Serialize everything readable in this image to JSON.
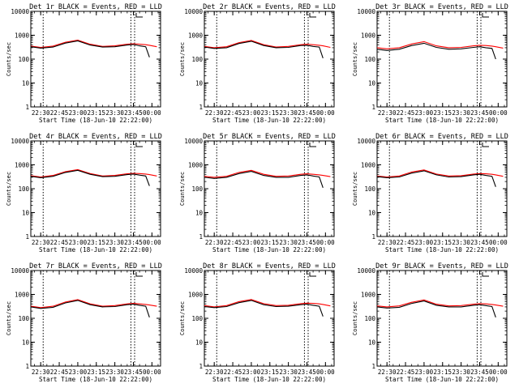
{
  "chart_data": [
    {
      "type": "line",
      "title": "Det 1r BLACK = Events, RED = LLD",
      "xlabel": "Start Time (18-Jun-10 22:22:00)",
      "ylabel": "Counts/sec",
      "yscale": "log",
      "ylim": [
        1,
        10000
      ],
      "xlim": [
        "22:22",
        "00:07"
      ],
      "x_ticks": [
        "22:30",
        "22:45",
        "23:00",
        "23:15",
        "23:30",
        "23:45",
        "00:00"
      ],
      "y_ticks": [
        "1",
        "10",
        "100",
        "1000",
        "10000"
      ],
      "vlines": [
        "22:32",
        "23:43",
        "23:46"
      ],
      "legend_marker": "top-right",
      "grid": false,
      "x": [
        "22:22",
        "22:30",
        "22:40",
        "22:50",
        "23:00",
        "23:10",
        "23:20",
        "23:30",
        "23:40",
        "23:45",
        "23:50",
        "23:55",
        "23:58",
        "00:04"
      ],
      "series": [
        {
          "name": "Events",
          "color": "#000000",
          "values": [
            330,
            290,
            320,
            470,
            580,
            390,
            320,
            330,
            390,
            410,
            360,
            330,
            120,
            null
          ]
        },
        {
          "name": "LLD",
          "color": "#ff0000",
          "values": [
            350,
            310,
            350,
            510,
            620,
            420,
            340,
            360,
            420,
            440,
            420,
            400,
            380,
            330
          ]
        }
      ]
    },
    {
      "type": "line",
      "title": "Det 2r BLACK = Events, RED = LLD",
      "xlabel": "Start Time (18-Jun-10 22:22:00)",
      "ylabel": "Counts/sec",
      "yscale": "log",
      "ylim": [
        1,
        10000
      ],
      "xlim": [
        "22:22",
        "00:07"
      ],
      "x_ticks": [
        "22:30",
        "22:45",
        "23:00",
        "23:15",
        "23:30",
        "23:45",
        "00:00"
      ],
      "y_ticks": [
        "1",
        "10",
        "100",
        "1000",
        "10000"
      ],
      "vlines": [
        "22:32",
        "23:43",
        "23:46"
      ],
      "legend_marker": "top-right",
      "grid": false,
      "x": [
        "22:22",
        "22:30",
        "22:40",
        "22:50",
        "23:00",
        "23:10",
        "23:20",
        "23:30",
        "23:40",
        "23:45",
        "23:50",
        "23:55",
        "23:58",
        "00:04"
      ],
      "series": [
        {
          "name": "Events",
          "color": "#000000",
          "values": [
            320,
            280,
            300,
            450,
            560,
            370,
            300,
            310,
            370,
            380,
            340,
            320,
            110,
            null
          ]
        },
        {
          "name": "LLD",
          "color": "#ff0000",
          "values": [
            340,
            300,
            330,
            490,
            600,
            400,
            320,
            340,
            400,
            420,
            400,
            380,
            360,
            310
          ]
        }
      ]
    },
    {
      "type": "line",
      "title": "Det 3r BLACK = Events, RED = LLD",
      "xlabel": "Start Time (18-Jun-10 22:22:00)",
      "ylabel": "Counts/sec",
      "yscale": "log",
      "ylim": [
        1,
        10000
      ],
      "xlim": [
        "22:22",
        "00:07"
      ],
      "x_ticks": [
        "22:30",
        "22:45",
        "23:00",
        "23:15",
        "23:30",
        "23:45",
        "00:00"
      ],
      "y_ticks": [
        "1",
        "10",
        "100",
        "1000",
        "10000"
      ],
      "vlines": [
        "22:32",
        "23:43",
        "23:46"
      ],
      "legend_marker": "top-right",
      "grid": false,
      "x": [
        "22:22",
        "22:30",
        "22:40",
        "22:50",
        "23:00",
        "23:10",
        "23:20",
        "23:30",
        "23:40",
        "23:45",
        "23:50",
        "23:55",
        "23:58",
        "00:04"
      ],
      "series": [
        {
          "name": "Events",
          "color": "#000000",
          "values": [
            260,
            230,
            260,
            370,
            460,
            310,
            260,
            270,
            310,
            330,
            300,
            280,
            100,
            null
          ]
        },
        {
          "name": "LLD",
          "color": "#ff0000",
          "values": [
            300,
            270,
            300,
            430,
            540,
            360,
            300,
            310,
            360,
            380,
            370,
            350,
            330,
            290
          ]
        }
      ]
    },
    {
      "type": "line",
      "title": "Det 4r BLACK = Events, RED = LLD",
      "xlabel": "Start Time (18-Jun-10 22:22:00)",
      "ylabel": "Counts/sec",
      "yscale": "log",
      "ylim": [
        1,
        10000
      ],
      "xlim": [
        "22:22",
        "00:07"
      ],
      "x_ticks": [
        "22:30",
        "22:45",
        "23:00",
        "23:15",
        "23:30",
        "23:45",
        "00:00"
      ],
      "y_ticks": [
        "1",
        "10",
        "100",
        "1000",
        "10000"
      ],
      "vlines": [
        "22:32",
        "23:43",
        "23:46"
      ],
      "legend_marker": "top-right",
      "grid": false,
      "x": [
        "22:22",
        "22:30",
        "22:40",
        "22:50",
        "23:00",
        "23:10",
        "23:20",
        "23:30",
        "23:40",
        "23:45",
        "23:50",
        "23:55",
        "23:58",
        "00:04"
      ],
      "series": [
        {
          "name": "Events",
          "color": "#000000",
          "values": [
            330,
            290,
            330,
            480,
            590,
            400,
            320,
            330,
            390,
            410,
            370,
            340,
            130,
            null
          ]
        },
        {
          "name": "LLD",
          "color": "#ff0000",
          "values": [
            350,
            310,
            360,
            520,
            630,
            430,
            340,
            360,
            420,
            440,
            430,
            410,
            390,
            340
          ]
        }
      ]
    },
    {
      "type": "line",
      "title": "Det 5r BLACK = Events, RED = LLD",
      "xlabel": "Start Time (18-Jun-10 22:22:00)",
      "ylabel": "Counts/sec",
      "yscale": "log",
      "ylim": [
        1,
        10000
      ],
      "xlim": [
        "22:22",
        "00:07"
      ],
      "x_ticks": [
        "22:30",
        "22:45",
        "23:00",
        "23:15",
        "23:30",
        "23:45",
        "00:00"
      ],
      "y_ticks": [
        "1",
        "10",
        "100",
        "1000",
        "10000"
      ],
      "vlines": [
        "22:32",
        "23:43",
        "23:46"
      ],
      "legend_marker": "top-right",
      "grid": false,
      "x": [
        "22:22",
        "22:30",
        "22:40",
        "22:50",
        "23:00",
        "23:10",
        "23:20",
        "23:30",
        "23:40",
        "23:45",
        "23:50",
        "23:55",
        "23:58",
        "00:04"
      ],
      "series": [
        {
          "name": "Events",
          "color": "#000000",
          "values": [
            300,
            270,
            300,
            430,
            530,
            360,
            300,
            300,
            360,
            380,
            340,
            310,
            110,
            null
          ]
        },
        {
          "name": "LLD",
          "color": "#ff0000",
          "values": [
            330,
            300,
            330,
            480,
            590,
            400,
            330,
            340,
            400,
            420,
            400,
            380,
            360,
            320
          ]
        }
      ]
    },
    {
      "type": "line",
      "title": "Det 6r BLACK = Events, RED = LLD",
      "xlabel": "Start Time (18-Jun-10 22:22:00)",
      "ylabel": "Counts/sec",
      "yscale": "log",
      "ylim": [
        1,
        10000
      ],
      "xlim": [
        "22:22",
        "00:07"
      ],
      "x_ticks": [
        "22:30",
        "22:45",
        "23:00",
        "23:15",
        "23:30",
        "23:45",
        "00:00"
      ],
      "y_ticks": [
        "1",
        "10",
        "100",
        "1000",
        "10000"
      ],
      "vlines": [
        "22:32",
        "23:43",
        "23:46"
      ],
      "legend_marker": "top-right",
      "grid": false,
      "x": [
        "22:22",
        "22:30",
        "22:40",
        "22:50",
        "23:00",
        "23:10",
        "23:20",
        "23:30",
        "23:40",
        "23:45",
        "23:50",
        "23:55",
        "23:58",
        "00:04"
      ],
      "series": [
        {
          "name": "Events",
          "color": "#000000",
          "values": [
            320,
            290,
            310,
            450,
            560,
            380,
            310,
            320,
            380,
            400,
            360,
            330,
            120,
            null
          ]
        },
        {
          "name": "LLD",
          "color": "#ff0000",
          "values": [
            340,
            310,
            340,
            500,
            610,
            410,
            340,
            350,
            410,
            430,
            420,
            400,
            380,
            330
          ]
        }
      ]
    },
    {
      "type": "line",
      "title": "Det 7r BLACK = Events, RED = LLD",
      "xlabel": "Start Time (18-Jun-10 22:22:00)",
      "ylabel": "Counts/sec",
      "yscale": "log",
      "ylim": [
        1,
        10000
      ],
      "xlim": [
        "22:22",
        "00:07"
      ],
      "x_ticks": [
        "22:30",
        "22:45",
        "23:00",
        "23:15",
        "23:30",
        "23:45",
        "00:00"
      ],
      "y_ticks": [
        "1",
        "10",
        "100",
        "1000",
        "10000"
      ],
      "vlines": [
        "22:32",
        "23:43",
        "23:46"
      ],
      "legend_marker": "top-right",
      "grid": false,
      "x": [
        "22:22",
        "22:30",
        "22:40",
        "22:50",
        "23:00",
        "23:10",
        "23:20",
        "23:30",
        "23:40",
        "23:45",
        "23:50",
        "23:55",
        "23:58",
        "00:04"
      ],
      "series": [
        {
          "name": "Events",
          "color": "#000000",
          "values": [
            300,
            260,
            290,
            440,
            560,
            370,
            300,
            310,
            370,
            390,
            350,
            320,
            110,
            null
          ]
        },
        {
          "name": "LLD",
          "color": "#ff0000",
          "values": [
            320,
            280,
            320,
            480,
            600,
            400,
            320,
            340,
            400,
            420,
            400,
            380,
            360,
            320
          ]
        }
      ]
    },
    {
      "type": "line",
      "title": "Det 8r BLACK = Events, RED = LLD",
      "xlabel": "Start Time (18-Jun-10 22:22:00)",
      "ylabel": "Counts/sec",
      "yscale": "log",
      "ylim": [
        1,
        10000
      ],
      "xlim": [
        "22:22",
        "00:07"
      ],
      "x_ticks": [
        "22:30",
        "22:45",
        "23:00",
        "23:15",
        "23:30",
        "23:45",
        "00:00"
      ],
      "y_ticks": [
        "1",
        "10",
        "100",
        "1000",
        "10000"
      ],
      "vlines": [
        "22:32",
        "23:43",
        "23:46"
      ],
      "legend_marker": "top-right",
      "grid": false,
      "x": [
        "22:22",
        "22:30",
        "22:40",
        "22:50",
        "23:00",
        "23:10",
        "23:20",
        "23:30",
        "23:40",
        "23:45",
        "23:50",
        "23:55",
        "23:58",
        "00:04"
      ],
      "series": [
        {
          "name": "Events",
          "color": "#000000",
          "values": [
            310,
            280,
            310,
            450,
            560,
            370,
            310,
            320,
            370,
            390,
            350,
            320,
            120,
            null
          ]
        },
        {
          "name": "LLD",
          "color": "#ff0000",
          "values": [
            340,
            300,
            340,
            500,
            610,
            410,
            340,
            350,
            410,
            430,
            420,
            400,
            380,
            330
          ]
        }
      ]
    },
    {
      "type": "line",
      "title": "Det 9r BLACK = Events, RED = LLD",
      "xlabel": "Start Time (18-Jun-10 22:22:00)",
      "ylabel": "Counts/sec",
      "yscale": "log",
      "ylim": [
        1,
        10000
      ],
      "xlim": [
        "22:22",
        "00:07"
      ],
      "x_ticks": [
        "22:30",
        "22:45",
        "23:00",
        "23:15",
        "23:30",
        "23:45",
        "00:00"
      ],
      "y_ticks": [
        "1",
        "10",
        "100",
        "1000",
        "10000"
      ],
      "vlines": [
        "22:32",
        "23:43",
        "23:46"
      ],
      "legend_marker": "top-right",
      "grid": false,
      "x": [
        "22:22",
        "22:30",
        "22:40",
        "22:50",
        "23:00",
        "23:10",
        "23:20",
        "23:30",
        "23:40",
        "23:45",
        "23:50",
        "23:55",
        "23:58",
        "00:04"
      ],
      "series": [
        {
          "name": "Events",
          "color": "#000000",
          "values": [
            300,
            270,
            290,
            420,
            530,
            350,
            300,
            300,
            350,
            370,
            340,
            310,
            110,
            null
          ]
        },
        {
          "name": "LLD",
          "color": "#ff0000",
          "values": [
            330,
            300,
            330,
            470,
            590,
            390,
            330,
            340,
            390,
            410,
            400,
            380,
            360,
            320
          ]
        }
      ]
    }
  ]
}
